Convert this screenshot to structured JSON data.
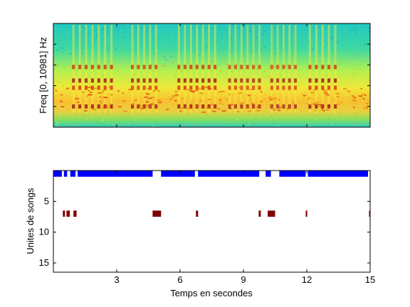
{
  "chart_data": [
    {
      "type": "heatmap",
      "ylabel": "Freq [0, 10981] Hz",
      "xlim": [
        0,
        15
      ],
      "ylim": [
        0,
        10981
      ],
      "grid": false,
      "colormap": "jet",
      "peak_bands": [
        {
          "x": [
            0.8,
            2.9
          ],
          "intensity": 0.95
        },
        {
          "x": [
            3.6,
            5.0
          ],
          "intensity": 0.9
        },
        {
          "x": [
            5.8,
            7.8
          ],
          "intensity": 0.95
        },
        {
          "x": [
            8.2,
            9.9
          ],
          "intensity": 0.85
        },
        {
          "x": [
            10.2,
            11.6
          ],
          "intensity": 0.85
        },
        {
          "x": [
            12.0,
            13.5
          ],
          "intensity": 0.95
        }
      ]
    },
    {
      "type": "scatter",
      "xlabel": "Temps en secondes",
      "ylabel": "Unites de songs",
      "xlim": [
        0,
        15
      ],
      "ylim": [
        16.5,
        0
      ],
      "xticks": [
        3,
        6,
        9,
        12,
        15
      ],
      "yticks": [
        5,
        10,
        15
      ],
      "grid": false,
      "series": [
        {
          "color": "#0000ff",
          "y": 0.5,
          "segments": [
            [
              0,
              0.4
            ],
            [
              0.5,
              0.65
            ],
            [
              0.8,
              1.05
            ],
            [
              1.15,
              4.7
            ],
            [
              5.1,
              6.7
            ],
            [
              6.85,
              9.75
            ],
            [
              10.05,
              10.3
            ],
            [
              10.7,
              11.95
            ],
            [
              12.05,
              14.9
            ]
          ]
        },
        {
          "color": "#800000",
          "y": 7,
          "segments": [
            [
              0.45,
              0.55
            ],
            [
              0.62,
              0.78
            ],
            [
              0.95,
              1.1
            ],
            [
              4.7,
              5.1
            ],
            [
              6.75,
              6.85
            ],
            [
              9.72,
              9.82
            ],
            [
              10.15,
              10.5
            ],
            [
              11.95,
              12.02
            ],
            [
              14.95,
              15.0
            ]
          ]
        }
      ]
    }
  ]
}
